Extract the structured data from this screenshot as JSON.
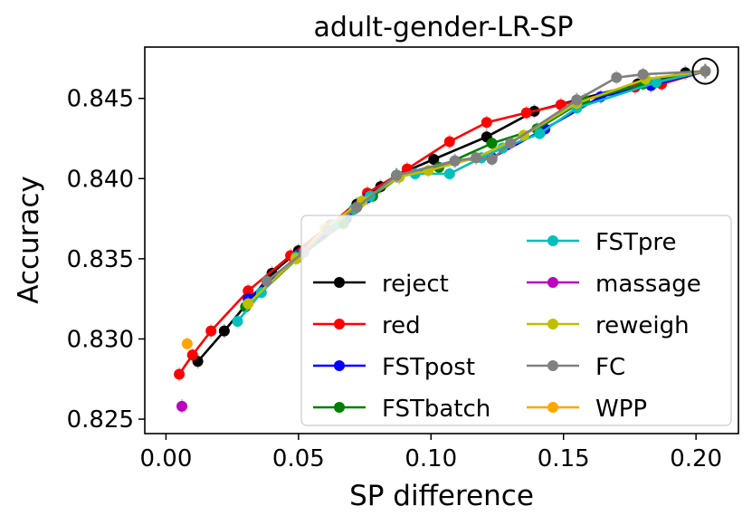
{
  "chart_data": {
    "type": "line",
    "title": "adult-gender-LR-SP",
    "xlabel": "SP difference",
    "ylabel": "Accuracy",
    "xlim": [
      -0.008,
      0.216
    ],
    "ylim": [
      0.8241,
      0.8482
    ],
    "xticks": [
      0.0,
      0.05,
      0.1,
      0.15,
      0.2
    ],
    "xtick_labels": [
      "0.00",
      "0.05",
      "0.10",
      "0.15",
      "0.20"
    ],
    "yticks": [
      0.825,
      0.83,
      0.835,
      0.84,
      0.845
    ],
    "ytick_labels": [
      "0.825",
      "0.830",
      "0.835",
      "0.840",
      "0.845"
    ],
    "grid": false,
    "legend_position": "lower-right",
    "highlight_point": {
      "x": 0.2035,
      "y": 0.8467
    },
    "series": [
      {
        "name": "reject",
        "color": "#000000",
        "x": [
          0.012,
          0.022,
          0.04,
          0.05,
          0.066,
          0.072,
          0.081,
          0.087,
          0.101,
          0.121,
          0.139,
          0.155,
          0.178,
          0.196,
          0.2035
        ],
        "y": [
          0.8286,
          0.8305,
          0.8341,
          0.8355,
          0.8373,
          0.8384,
          0.8395,
          0.8402,
          0.8412,
          0.8426,
          0.8442,
          0.8449,
          0.8459,
          0.8466,
          0.8467
        ]
      },
      {
        "name": "red",
        "color": "#ff0000",
        "x": [
          0.005,
          0.01,
          0.017,
          0.031,
          0.047,
          0.062,
          0.076,
          0.091,
          0.107,
          0.121,
          0.136,
          0.149,
          0.177,
          0.187,
          0.2035
        ],
        "y": [
          0.8278,
          0.829,
          0.8305,
          0.833,
          0.8352,
          0.8371,
          0.8391,
          0.8406,
          0.8423,
          0.8435,
          0.8441,
          0.8446,
          0.8457,
          0.8459,
          0.8467
        ]
      },
      {
        "name": "FSTpost",
        "color": "#0000ff",
        "x": [
          0.031,
          0.05,
          0.068,
          0.076,
          0.087,
          0.109,
          0.123,
          0.143,
          0.164,
          0.183,
          0.2035
        ],
        "y": [
          0.8325,
          0.8352,
          0.8375,
          0.8388,
          0.8402,
          0.8411,
          0.8413,
          0.8431,
          0.8451,
          0.8458,
          0.8467
        ]
      },
      {
        "name": "FSTbatch",
        "color": "#008000",
        "x": [
          0.03,
          0.05,
          0.067,
          0.078,
          0.088,
          0.103,
          0.123,
          0.14,
          0.158,
          0.18,
          0.2035
        ],
        "y": [
          0.832,
          0.8351,
          0.8372,
          0.8389,
          0.8401,
          0.8407,
          0.8422,
          0.8431,
          0.8449,
          0.8459,
          0.8467
        ]
      },
      {
        "name": "FSTpre",
        "color": "#00bfbf",
        "x": [
          0.027,
          0.036,
          0.049,
          0.063,
          0.071,
          0.077,
          0.087,
          0.094,
          0.107,
          0.119,
          0.127,
          0.141,
          0.155,
          0.185,
          0.2035
        ],
        "y": [
          0.8311,
          0.8329,
          0.8351,
          0.8371,
          0.8381,
          0.8389,
          0.8402,
          0.8403,
          0.8403,
          0.8413,
          0.8419,
          0.8428,
          0.8444,
          0.846,
          0.8467
        ]
      },
      {
        "name": "massage",
        "color": "#bf00bf",
        "x": [
          0.006
        ],
        "y": [
          0.8258
        ]
      },
      {
        "name": "reweigh",
        "color": "#bfbf00",
        "x": [
          0.031,
          0.049,
          0.06,
          0.074,
          0.088,
          0.099,
          0.117,
          0.135,
          0.155,
          0.181,
          0.2035
        ],
        "y": [
          0.8322,
          0.835,
          0.8369,
          0.8386,
          0.8401,
          0.8405,
          0.8413,
          0.8427,
          0.8447,
          0.8462,
          0.8467
        ]
      },
      {
        "name": "FC",
        "color": "#808080",
        "x": [
          0.038,
          0.052,
          0.061,
          0.072,
          0.087,
          0.109,
          0.117,
          0.123,
          0.13,
          0.155,
          0.17,
          0.18,
          0.2035
        ],
        "y": [
          0.8336,
          0.8354,
          0.8368,
          0.8382,
          0.8402,
          0.8411,
          0.8413,
          0.8412,
          0.8422,
          0.8449,
          0.8463,
          0.8465,
          0.8467
        ]
      },
      {
        "name": "WPP",
        "color": "#ffa500",
        "x": [
          0.008
        ],
        "y": [
          0.8297
        ]
      }
    ]
  }
}
